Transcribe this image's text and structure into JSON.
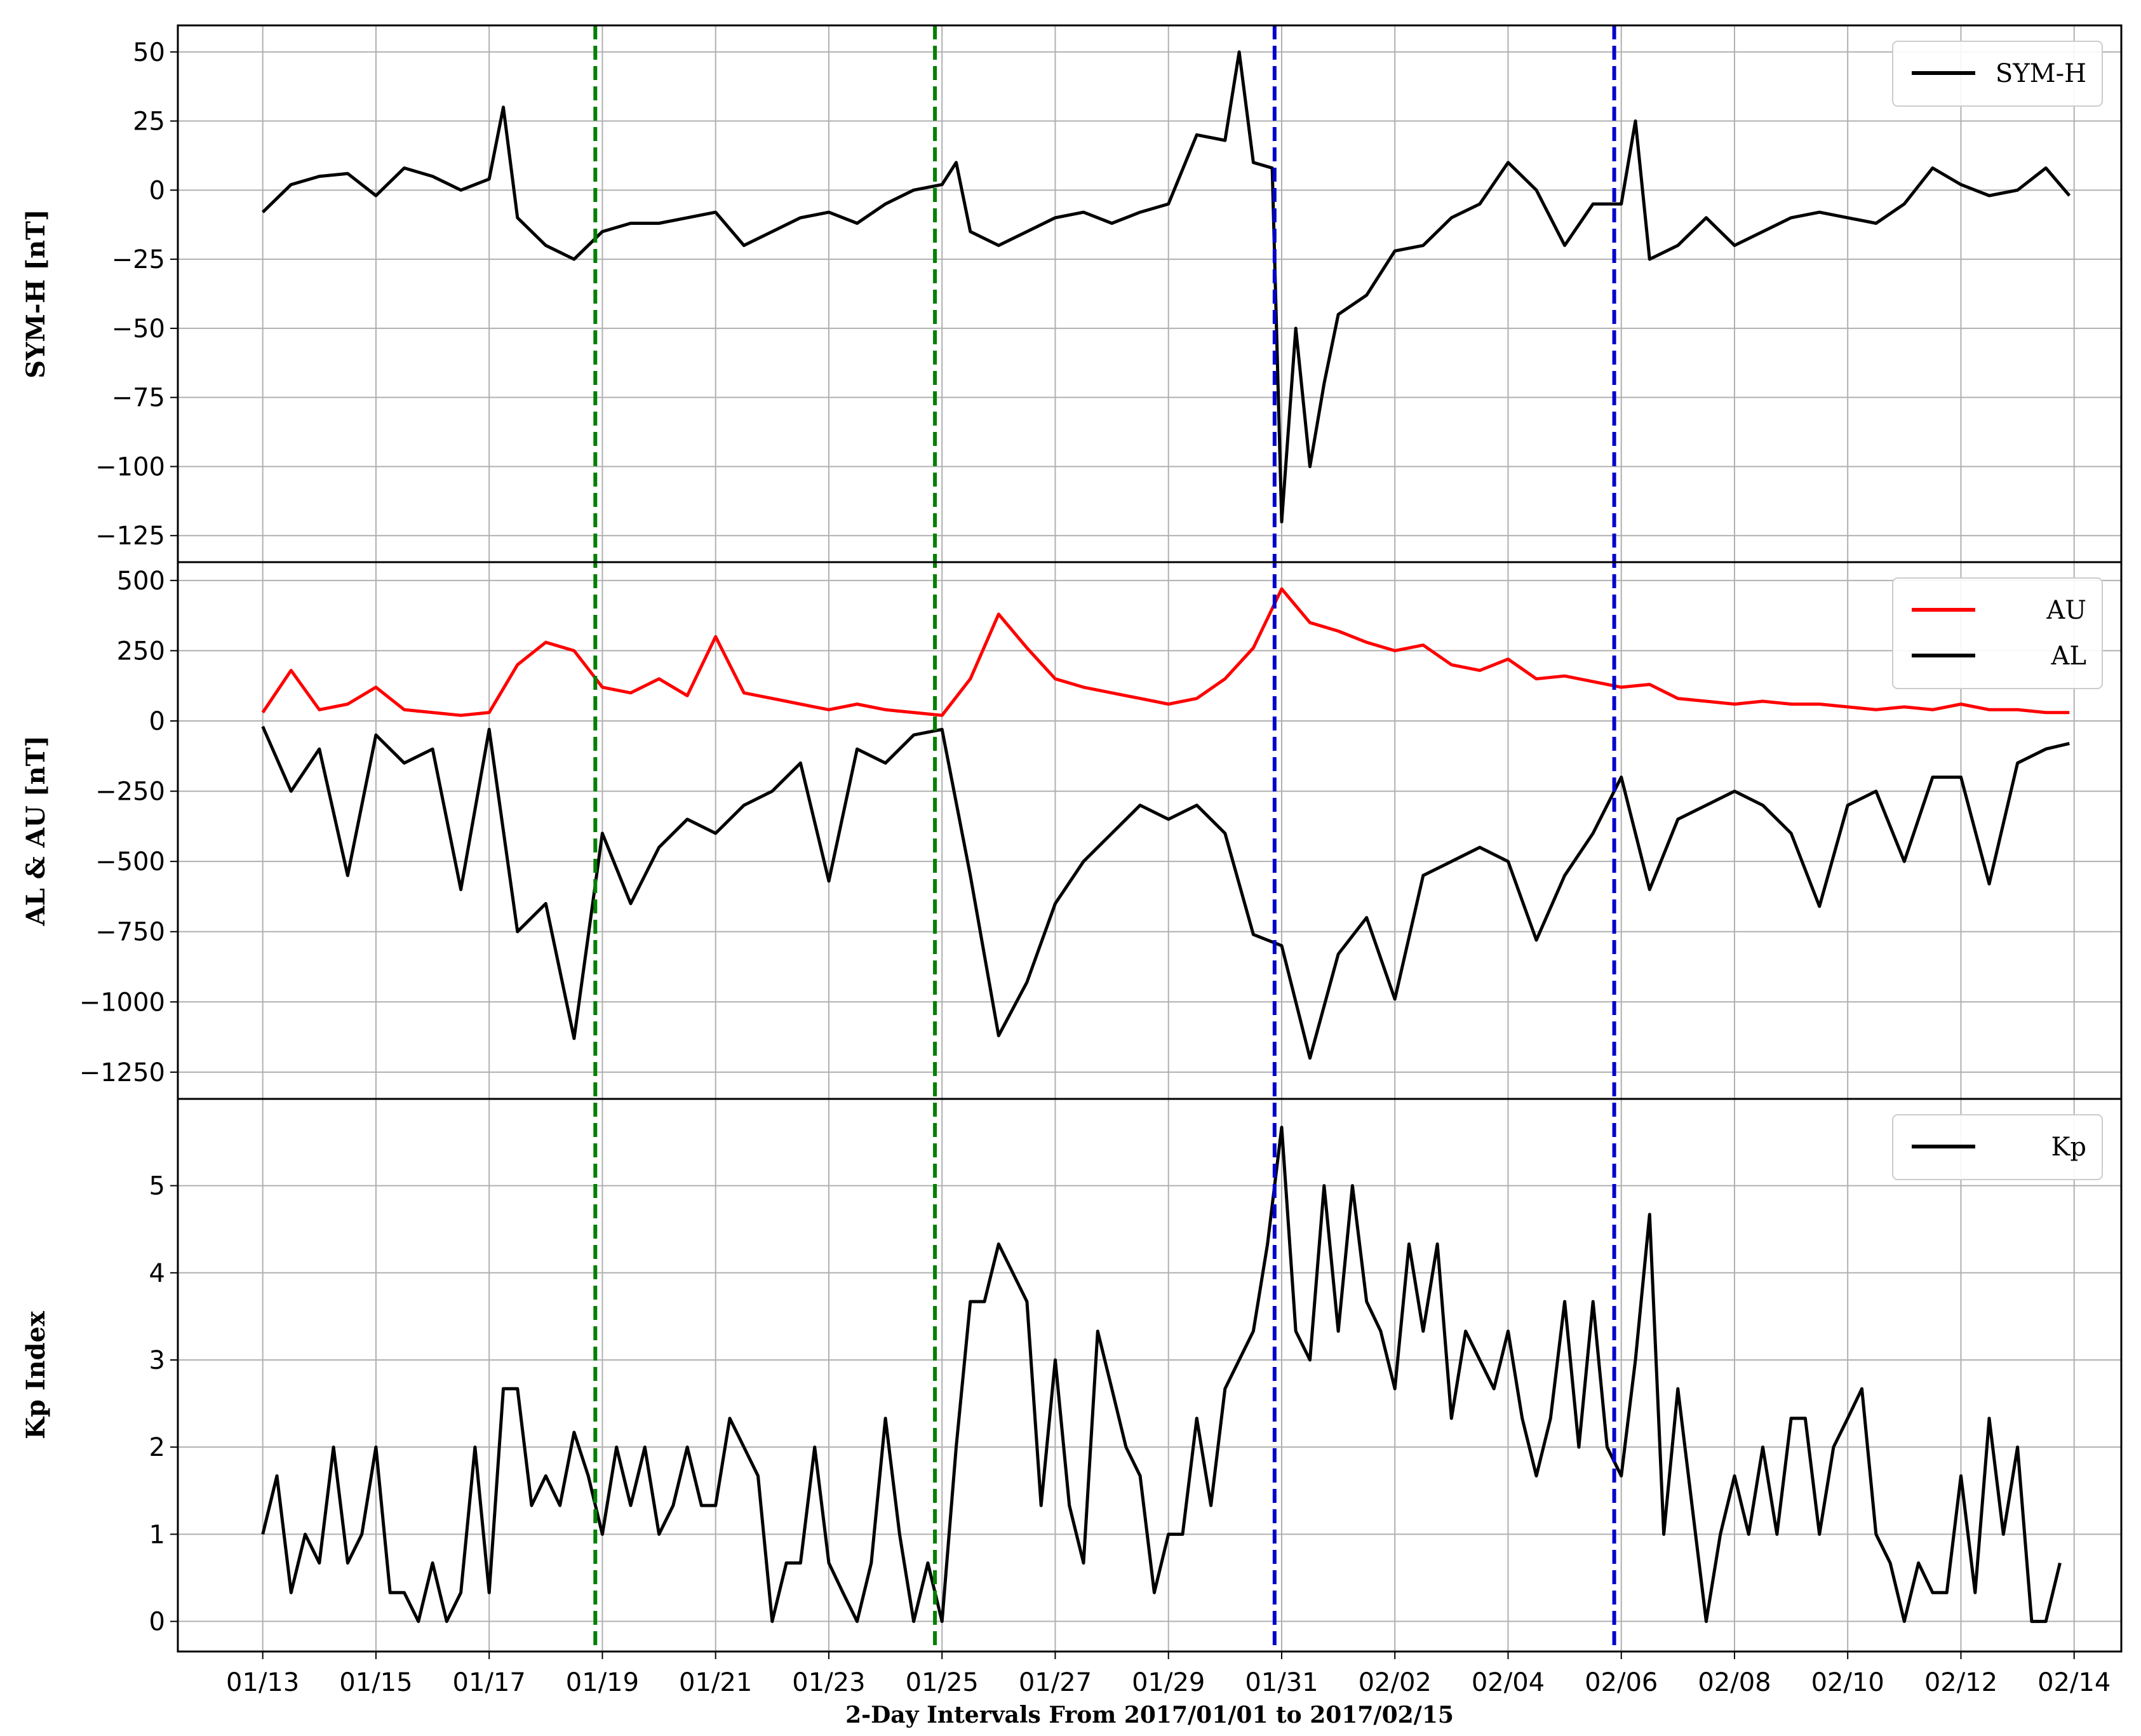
{
  "chart_data": [
    {
      "type": "line",
      "panel": "top",
      "ylabel": "SYM-H [nT]",
      "ylim": [
        -130,
        55
      ],
      "yticks": [
        50,
        25,
        0,
        -25,
        -50,
        -75,
        -100,
        -125
      ],
      "legend": {
        "placement": "top-right",
        "entries": [
          "SYM-H"
        ]
      },
      "grid": true,
      "series": [
        {
          "name": "SYM-H",
          "color": "#000000",
          "x": [
            "01/13 00:00",
            "01/13 12:00",
            "01/14 00:00",
            "01/14 12:00",
            "01/15 00:00",
            "01/15 12:00",
            "01/16 00:00",
            "01/16 12:00",
            "01/17 00:00",
            "01/17 06:00",
            "01/17 12:00",
            "01/18 00:00",
            "01/18 12:00",
            "01/19 00:00",
            "01/19 12:00",
            "01/20 00:00",
            "01/20 12:00",
            "01/21 00:00",
            "01/21 12:00",
            "01/22 00:00",
            "01/22 12:00",
            "01/23 00:00",
            "01/23 12:00",
            "01/24 00:00",
            "01/24 12:00",
            "01/25 00:00",
            "01/25 06:00",
            "01/25 12:00",
            "01/26 00:00",
            "01/26 12:00",
            "01/27 00:00",
            "01/27 12:00",
            "01/28 00:00",
            "01/28 12:00",
            "01/29 00:00",
            "01/29 12:00",
            "01/30 00:00",
            "01/30 06:00",
            "01/30 12:00",
            "01/30 20:00",
            "01/31 00:00",
            "01/31 06:00",
            "01/31 12:00",
            "01/31 18:00",
            "02/01 00:00",
            "02/01 12:00",
            "02/02 00:00",
            "02/02 12:00",
            "02/03 00:00",
            "02/03 12:00",
            "02/04 00:00",
            "02/04 12:00",
            "02/05 00:00",
            "02/05 12:00",
            "02/06 00:00",
            "02/06 06:00",
            "02/06 12:00",
            "02/07 00:00",
            "02/07 12:00",
            "02/08 00:00",
            "02/08 12:00",
            "02/09 00:00",
            "02/09 12:00",
            "02/10 00:00",
            "02/10 12:00",
            "02/11 00:00",
            "02/11 12:00",
            "02/12 00:00",
            "02/12 12:00",
            "02/13 00:00",
            "02/13 12:00",
            "02/13 22:00"
          ],
          "y": [
            -8,
            2,
            5,
            6,
            -2,
            8,
            5,
            0,
            4,
            30,
            -10,
            -20,
            -25,
            -15,
            -12,
            -12,
            -10,
            -8,
            -20,
            -15,
            -10,
            -8,
            -12,
            -5,
            0,
            2,
            10,
            -15,
            -20,
            -15,
            -10,
            -8,
            -12,
            -8,
            -5,
            20,
            18,
            50,
            10,
            8,
            -120,
            -50,
            -100,
            -70,
            -45,
            -38,
            -22,
            -20,
            -10,
            -5,
            10,
            0,
            -20,
            -5,
            -5,
            25,
            -25,
            -20,
            -10,
            -20,
            -15,
            -10,
            -8,
            -10,
            -12,
            -5,
            8,
            2,
            -2,
            0,
            8,
            -2
          ]
        }
      ]
    },
    {
      "type": "line",
      "panel": "middle",
      "ylabel": "AL & AU [nT]",
      "ylim": [
        -1300,
        520
      ],
      "yticks": [
        500,
        250,
        0,
        -250,
        -500,
        -750,
        -1000,
        -1250
      ],
      "legend": {
        "placement": "top-right",
        "entries": [
          "AU",
          "AL"
        ]
      },
      "grid": true,
      "series": [
        {
          "name": "AU",
          "color": "#ff0000",
          "x": [
            "01/13",
            "01/13 12:00",
            "01/14",
            "01/14 12:00",
            "01/15",
            "01/15 12:00",
            "01/16",
            "01/16 12:00",
            "01/17",
            "01/17 12:00",
            "01/18",
            "01/18 12:00",
            "01/19",
            "01/19 12:00",
            "01/20",
            "01/20 12:00",
            "01/21",
            "01/21 12:00",
            "01/22",
            "01/22 12:00",
            "01/23",
            "01/23 12:00",
            "01/24",
            "01/24 12:00",
            "01/25",
            "01/25 12:00",
            "01/26",
            "01/26 12:00",
            "01/27",
            "01/27 12:00",
            "01/28",
            "01/28 12:00",
            "01/29",
            "01/29 12:00",
            "01/30",
            "01/30 12:00",
            "01/31",
            "01/31 12:00",
            "02/01",
            "02/01 12:00",
            "02/02",
            "02/02 12:00",
            "02/03",
            "02/03 12:00",
            "02/04",
            "02/04 12:00",
            "02/05",
            "02/05 12:00",
            "02/06",
            "02/06 12:00",
            "02/07",
            "02/07 12:00",
            "02/08",
            "02/08 12:00",
            "02/09",
            "02/09 12:00",
            "02/10",
            "02/10 12:00",
            "02/11",
            "02/11 12:00",
            "02/12",
            "02/12 12:00",
            "02/13",
            "02/13 12:00",
            "02/13 22:00"
          ],
          "y": [
            30,
            180,
            40,
            60,
            120,
            40,
            30,
            20,
            30,
            200,
            280,
            250,
            120,
            100,
            150,
            90,
            300,
            100,
            80,
            60,
            40,
            60,
            40,
            30,
            20,
            150,
            380,
            260,
            150,
            120,
            100,
            80,
            60,
            80,
            150,
            260,
            470,
            350,
            320,
            280,
            250,
            270,
            200,
            180,
            220,
            150,
            160,
            140,
            120,
            130,
            80,
            70,
            60,
            70,
            60,
            60,
            50,
            40,
            50,
            40,
            60,
            40,
            40,
            30,
            30
          ]
        },
        {
          "name": "AL",
          "color": "#000000",
          "x": [
            "01/13",
            "01/13 12:00",
            "01/14",
            "01/14 12:00",
            "01/15",
            "01/15 12:00",
            "01/16",
            "01/16 12:00",
            "01/17",
            "01/17 12:00",
            "01/18",
            "01/18 12:00",
            "01/19",
            "01/19 12:00",
            "01/20",
            "01/20 12:00",
            "01/21",
            "01/21 12:00",
            "01/22",
            "01/22 12:00",
            "01/23",
            "01/23 12:00",
            "01/24",
            "01/24 12:00",
            "01/25",
            "01/25 12:00",
            "01/26",
            "01/26 12:00",
            "01/27",
            "01/27 12:00",
            "01/28",
            "01/28 12:00",
            "01/29",
            "01/29 12:00",
            "01/30",
            "01/30 12:00",
            "01/31",
            "01/31 12:00",
            "02/01",
            "02/01 12:00",
            "02/02",
            "02/02 12:00",
            "02/03",
            "02/03 12:00",
            "02/04",
            "02/04 12:00",
            "02/05",
            "02/05 12:00",
            "02/06",
            "02/06 12:00",
            "02/07",
            "02/07 12:00",
            "02/08",
            "02/08 12:00",
            "02/09",
            "02/09 12:00",
            "02/10",
            "02/10 12:00",
            "02/11",
            "02/11 12:00",
            "02/12",
            "02/12 12:00",
            "02/13",
            "02/13 12:00",
            "02/13 22:00"
          ],
          "y": [
            -20,
            -250,
            -100,
            -550,
            -50,
            -150,
            -100,
            -600,
            -30,
            -750,
            -650,
            -1130,
            -400,
            -650,
            -450,
            -350,
            -400,
            -300,
            -250,
            -150,
            -570,
            -100,
            -150,
            -50,
            -30,
            -550,
            -1120,
            -930,
            -650,
            -500,
            -400,
            -300,
            -350,
            -300,
            -400,
            -760,
            -800,
            -1200,
            -830,
            -700,
            -990,
            -550,
            -500,
            -450,
            -500,
            -780,
            -550,
            -400,
            -200,
            -600,
            -350,
            -300,
            -250,
            -300,
            -400,
            -660,
            -300,
            -250,
            -500,
            -200,
            -200,
            -580,
            -150,
            -100,
            -80
          ]
        }
      ]
    },
    {
      "type": "line",
      "panel": "bottom",
      "ylabel": "Kp Index",
      "xlabel": "2-Day Intervals From 2017/01/01 to 2017/02/15",
      "ylim": [
        -0.2,
        5.85
      ],
      "yticks": [
        5,
        4,
        3,
        2,
        1,
        0
      ],
      "xticks": [
        "01/13",
        "01/15",
        "01/17",
        "01/19",
        "01/21",
        "01/23",
        "01/25",
        "01/27",
        "01/29",
        "01/31",
        "02/02",
        "02/04",
        "02/06",
        "02/08",
        "02/10",
        "02/12",
        "02/14"
      ],
      "legend": {
        "placement": "top-right",
        "entries": [
          "Kp"
        ]
      },
      "grid": true,
      "series": [
        {
          "name": "Kp",
          "color": "#000000",
          "x": [
            "01/13 00:00",
            "01/13 06:00",
            "01/13 12:00",
            "01/13 18:00",
            "01/14 00:00",
            "01/14 06:00",
            "01/14 12:00",
            "01/14 18:00",
            "01/15 00:00",
            "01/15 06:00",
            "01/15 12:00",
            "01/15 18:00",
            "01/16 00:00",
            "01/16 06:00",
            "01/16 12:00",
            "01/16 18:00",
            "01/17 00:00",
            "01/17 06:00",
            "01/17 12:00",
            "01/17 18:00",
            "01/18 00:00",
            "01/18 06:00",
            "01/18 12:00",
            "01/18 18:00",
            "01/19 00:00",
            "01/19 06:00",
            "01/19 12:00",
            "01/19 18:00",
            "01/20 00:00",
            "01/20 06:00",
            "01/20 12:00",
            "01/20 18:00",
            "01/21 00:00",
            "01/21 06:00",
            "01/21 12:00",
            "01/21 18:00",
            "01/22 00:00",
            "01/22 06:00",
            "01/22 12:00",
            "01/22 18:00",
            "01/23 00:00",
            "01/23 06:00",
            "01/23 12:00",
            "01/23 18:00",
            "01/24 00:00",
            "01/24 06:00",
            "01/24 12:00",
            "01/24 18:00",
            "01/25 00:00",
            "01/25 06:00",
            "01/25 12:00",
            "01/25 18:00",
            "01/26 00:00",
            "01/26 06:00",
            "01/26 12:00",
            "01/26 18:00",
            "01/27 00:00",
            "01/27 06:00",
            "01/27 12:00",
            "01/27 18:00",
            "01/28 00:00",
            "01/28 06:00",
            "01/28 12:00",
            "01/28 18:00",
            "01/29 00:00",
            "01/29 06:00",
            "01/29 12:00",
            "01/29 18:00",
            "01/30 00:00",
            "01/30 06:00",
            "01/30 12:00",
            "01/30 18:00",
            "01/31 00:00",
            "01/31 06:00",
            "01/31 12:00",
            "01/31 18:00",
            "02/01 00:00",
            "02/01 06:00",
            "02/01 12:00",
            "02/01 18:00",
            "02/02 00:00",
            "02/02 06:00",
            "02/02 12:00",
            "02/02 18:00",
            "02/03 00:00",
            "02/03 06:00",
            "02/03 12:00",
            "02/03 18:00",
            "02/04 00:00",
            "02/04 06:00",
            "02/04 12:00",
            "02/04 18:00",
            "02/05 00:00",
            "02/05 06:00",
            "02/05 12:00",
            "02/05 18:00",
            "02/06 00:00",
            "02/06 06:00",
            "02/06 12:00",
            "02/06 18:00",
            "02/07 00:00",
            "02/07 06:00",
            "02/07 12:00",
            "02/07 18:00",
            "02/08 00:00",
            "02/08 06:00",
            "02/08 12:00",
            "02/08 18:00",
            "02/09 00:00",
            "02/09 06:00",
            "02/09 12:00",
            "02/09 18:00",
            "02/10 00:00",
            "02/10 06:00",
            "02/10 12:00",
            "02/10 18:00",
            "02/11 00:00",
            "02/11 06:00",
            "02/11 12:00",
            "02/11 18:00",
            "02/12 00:00",
            "02/12 06:00",
            "02/12 12:00",
            "02/12 18:00",
            "02/13 00:00",
            "02/13 06:00",
            "02/13 12:00",
            "02/13 18:00"
          ],
          "y": [
            1,
            1.67,
            0.33,
            1,
            0.67,
            2,
            0.67,
            1,
            2,
            0.33,
            0.33,
            0,
            0.67,
            0,
            0.33,
            2,
            0.33,
            2.67,
            2.67,
            1.33,
            1.67,
            1.33,
            2.17,
            1.67,
            1,
            2,
            1.33,
            2,
            1,
            1.33,
            2,
            1.33,
            1.33,
            2.33,
            2,
            1.67,
            0,
            0.67,
            0.67,
            2,
            0.67,
            0.33,
            0,
            0.67,
            2.33,
            1,
            0,
            0.67,
            0,
            2,
            3.67,
            3.67,
            4.33,
            4,
            3.67,
            1.33,
            3,
            1.33,
            0.67,
            3.33,
            2.67,
            2,
            1.67,
            0.33,
            1,
            1,
            2.33,
            1.33,
            2.67,
            3,
            3.33,
            4.33,
            5.67,
            3.33,
            3,
            5,
            3.33,
            5,
            3.67,
            3.33,
            2.67,
            4.33,
            3.33,
            4.33,
            2.33,
            3.33,
            3,
            2.67,
            3.33,
            2.33,
            1.67,
            2.33,
            3.67,
            2,
            3.67,
            2,
            1.67,
            3,
            4.67,
            1,
            2.67,
            1.33,
            0,
            1,
            1.67,
            1,
            2,
            1,
            2.33,
            2.33,
            1,
            2,
            2.33,
            2.67,
            1,
            0.67,
            0,
            0.67,
            0.33,
            0.33,
            1.67,
            0.33,
            2.33,
            1,
            2,
            0,
            0,
            0.67
          ]
        }
      ]
    }
  ],
  "markers": {
    "green_dashed": {
      "color": "#008000",
      "x": [
        "01/18 21:00",
        "01/24 21:00"
      ]
    },
    "blue_dashed": {
      "color": "#0000cc",
      "x": [
        "01/30 21:00",
        "02/05 21:00"
      ]
    }
  }
}
